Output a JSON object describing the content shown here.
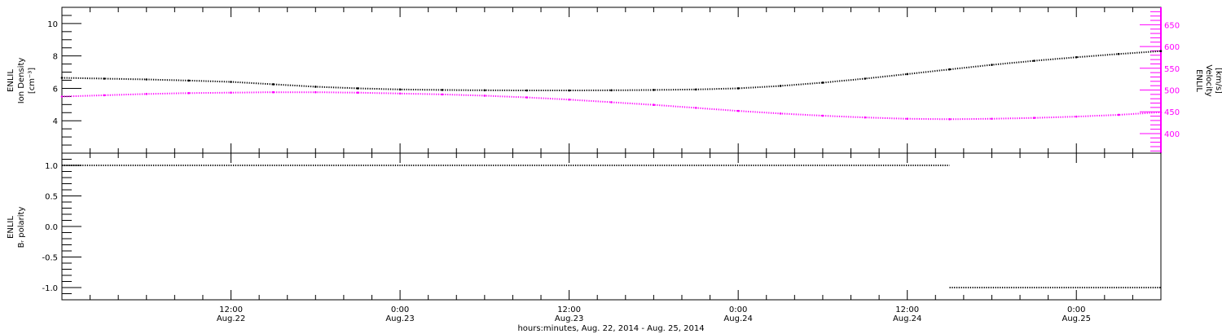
{
  "colors": {
    "axis": "#000000",
    "density": "#000000",
    "velocity": "#ff00ff",
    "polarity": "#000000",
    "background": "#ffffff"
  },
  "x_axis": {
    "title": "hours:minutes, Aug. 22, 2014 - Aug. 25, 2014",
    "range_hours": [
      0,
      78
    ],
    "major_ticks": [
      {
        "hour": 12,
        "time": "12:00",
        "date": "Aug.22"
      },
      {
        "hour": 24,
        "time": "0:00",
        "date": "Aug.23"
      },
      {
        "hour": 36,
        "time": "12:00",
        "date": "Aug.23"
      },
      {
        "hour": 48,
        "time": "0:00",
        "date": "Aug.24"
      },
      {
        "hour": 60,
        "time": "12:00",
        "date": "Aug.24"
      },
      {
        "hour": 72,
        "time": "0:00",
        "date": "Aug.25"
      }
    ],
    "minor_tick_step_hours": 2
  },
  "chart_data": [
    {
      "type": "line",
      "panel": "top",
      "left_axis": {
        "label_lines": [
          "ENLIL",
          "Ion Density",
          "[cm⁻³]"
        ],
        "ylim": [
          2,
          11
        ],
        "tick_labels": [
          "4",
          "6",
          "8",
          "10"
        ]
      },
      "right_axis": {
        "label_lines": [
          "ENLIL",
          "Velocity",
          "[km/s]"
        ],
        "ylim": [
          355,
          690
        ],
        "tick_labels": [
          "400",
          "450",
          "500",
          "550",
          "600",
          "650"
        ]
      },
      "series": [
        {
          "name": "Ion Density",
          "axis": "left",
          "x_hours": [
            0,
            3,
            6,
            9,
            12,
            15,
            18,
            21,
            24,
            27,
            30,
            33,
            36,
            39,
            42,
            45,
            48,
            51,
            54,
            57,
            60,
            63,
            66,
            69,
            72,
            75,
            78
          ],
          "y": [
            6.65,
            6.6,
            6.55,
            6.48,
            6.4,
            6.25,
            6.1,
            6.0,
            5.93,
            5.9,
            5.88,
            5.87,
            5.87,
            5.88,
            5.9,
            5.93,
            6.0,
            6.15,
            6.35,
            6.6,
            6.88,
            7.17,
            7.45,
            7.7,
            7.92,
            8.12,
            8.3
          ]
        },
        {
          "name": "Velocity",
          "axis": "right",
          "x_hours": [
            0,
            3,
            6,
            9,
            12,
            15,
            18,
            21,
            24,
            27,
            30,
            33,
            36,
            39,
            42,
            45,
            48,
            51,
            54,
            57,
            60,
            63,
            66,
            69,
            72,
            75,
            78
          ],
          "y": [
            485,
            488,
            491,
            493,
            494,
            495,
            495,
            494,
            492,
            490,
            487,
            483,
            478,
            472,
            466,
            459,
            452,
            446,
            441,
            437,
            434,
            433,
            434,
            436,
            439,
            443,
            449
          ]
        }
      ]
    },
    {
      "type": "line",
      "panel": "bottom",
      "left_axis": {
        "label_lines": [
          "ENLIL",
          "Bᵣ polarity"
        ],
        "ylim": [
          -1.2,
          1.2
        ],
        "tick_labels": [
          "-1.0",
          "-0.5",
          "0.0",
          "0.5",
          "1.0"
        ]
      },
      "series": [
        {
          "name": "Br polarity",
          "segments": [
            {
              "x_hours": [
                0,
                63
              ],
              "y": [
                1.0,
                1.0
              ]
            },
            {
              "x_hours": [
                63,
                78
              ],
              "y": [
                -1.0,
                -1.0
              ]
            }
          ]
        }
      ]
    }
  ]
}
